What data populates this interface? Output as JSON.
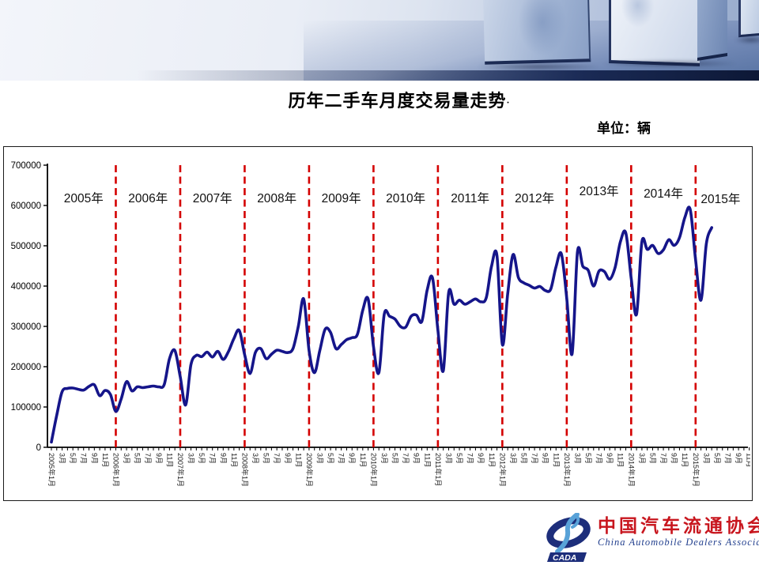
{
  "slide": {
    "title": "历年二手车月度交易量走势",
    "title_mark": "·",
    "unit_label": "单位：辆"
  },
  "logo": {
    "acronym": "CADA",
    "org_cn": "中国汽车流通协会",
    "org_en": "China Automobile Dealers Association"
  },
  "chart_data": {
    "type": "line",
    "title": "历年二手车月度交易量走势",
    "unit": "辆",
    "ylim": [
      0,
      700000
    ],
    "ytick_interval": 100000,
    "ytick_labels": [
      "0",
      "100000",
      "200000",
      "300000",
      "400000",
      "500000",
      "600000",
      "700000"
    ],
    "x_start_label": "2005年1月",
    "x_tick_labels": [
      "2005年1月",
      "3月",
      "5月",
      "7月",
      "9月",
      "11月",
      "2006年1月",
      "3月",
      "5月",
      "7月",
      "9月",
      "11月",
      "2007年1月",
      "3月",
      "5月",
      "7月",
      "9月",
      "11月",
      "2008年1月",
      "3月",
      "5月",
      "7月",
      "9月",
      "11月",
      "2009年1月",
      "3月",
      "5月",
      "7月",
      "9月",
      "11月",
      "2010年1月",
      "3月",
      "5月",
      "7月",
      "9月",
      "11月",
      "2011年1月",
      "3月",
      "5月",
      "7月",
      "9月",
      "11月",
      "2012年1月",
      "3月",
      "5月",
      "7月",
      "9月",
      "11月",
      "2013年1月",
      "3月",
      "5月",
      "7月",
      "9月",
      "11月",
      "2014年1月",
      "3月",
      "5月",
      "7月",
      "9月",
      "11月",
      "2015年1月",
      "3月",
      "5月",
      "7月",
      "9月",
      "11月"
    ],
    "year_labels": [
      "2005年",
      "2006年",
      "2007年",
      "2008年",
      "2009年",
      "2010年",
      "2011年",
      "2012年",
      "2013年",
      "2014年",
      "2015年"
    ],
    "year_divider_color": "#d40000",
    "line_color": "#15158a",
    "grid": false,
    "legend": false,
    "series": [
      {
        "name": "月度交易量",
        "start": "2005年1月",
        "monthly_values": [
          13000,
          80000,
          138000,
          146000,
          147000,
          144000,
          142000,
          151000,
          155000,
          128000,
          141000,
          131000,
          89000,
          120000,
          163000,
          140000,
          150000,
          148000,
          150000,
          152000,
          150000,
          155000,
          220000,
          240000,
          175000,
          105000,
          205000,
          228000,
          225000,
          236000,
          224000,
          238000,
          218000,
          238000,
          270000,
          290000,
          230000,
          183000,
          235000,
          245000,
          220000,
          231000,
          241000,
          238000,
          235000,
          245000,
          300000,
          368000,
          240000,
          185000,
          240000,
          293000,
          285000,
          245000,
          255000,
          267000,
          272000,
          280000,
          340000,
          368000,
          250000,
          185000,
          330000,
          325000,
          318000,
          300000,
          298000,
          325000,
          328000,
          312000,
          390000,
          420000,
          290000,
          190000,
          384000,
          355000,
          365000,
          355000,
          361000,
          368000,
          361000,
          371000,
          450000,
          475000,
          255000,
          380000,
          478000,
          421000,
          408000,
          402000,
          395000,
          399000,
          389000,
          392000,
          448000,
          480000,
          370000,
          232000,
          485000,
          449000,
          439000,
          400000,
          437000,
          436000,
          417000,
          446000,
          510000,
          532000,
          420000,
          330000,
          510000,
          491000,
          501000,
          481000,
          490000,
          515000,
          501000,
          520000,
          570000,
          590000,
          465000,
          365000,
          505000,
          545000
        ]
      }
    ]
  }
}
